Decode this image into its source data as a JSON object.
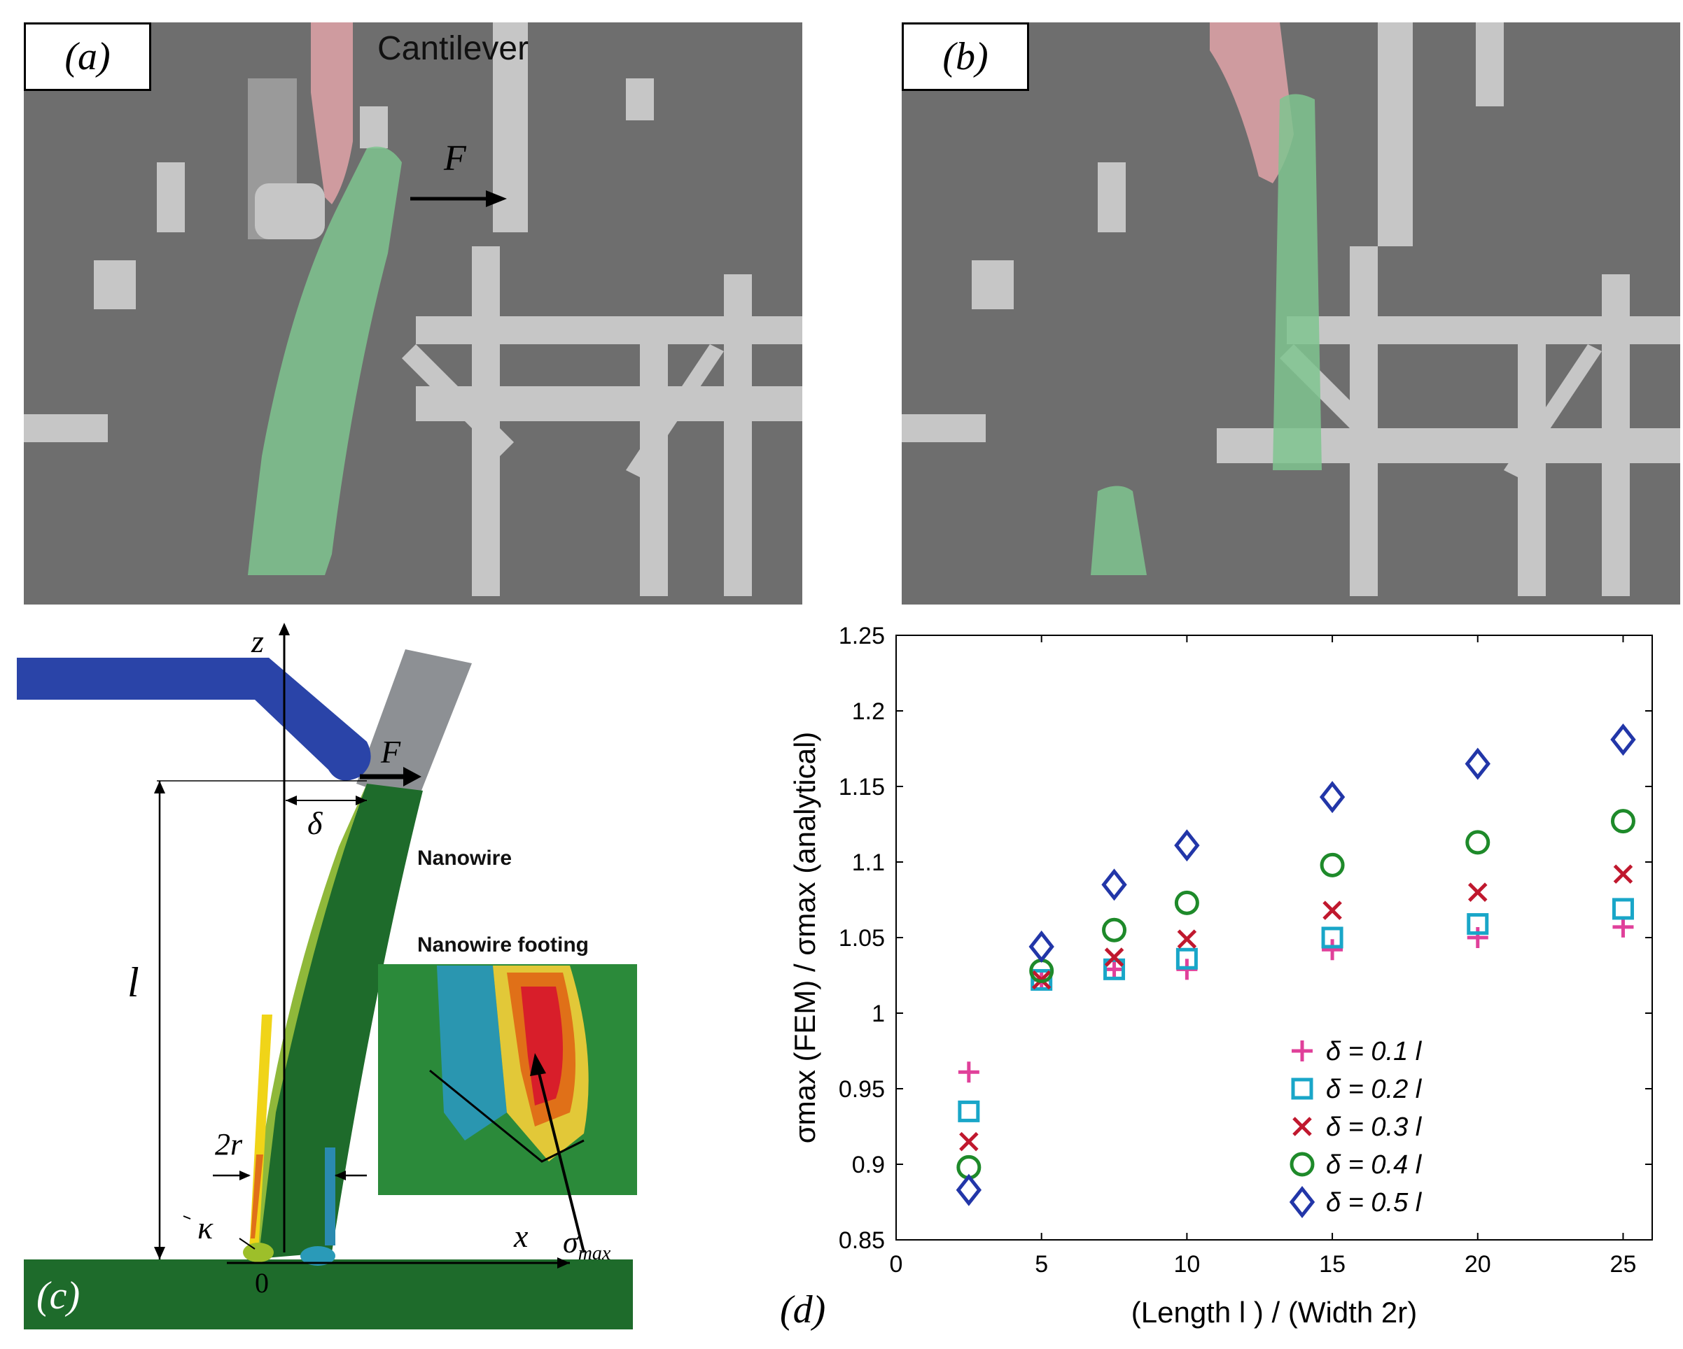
{
  "panel_a": {
    "label": "(a)",
    "cantilever_text": "Cantilever",
    "force_label": "F"
  },
  "panel_b": {
    "label": "(b)"
  },
  "panel_c": {
    "label": "(c)",
    "z_label": "z",
    "x_label": "x",
    "force_label": "F",
    "delta_label": "δ",
    "length_label": "l",
    "width_label": "2r",
    "kappa_label": "κ",
    "origin_label": "0",
    "nanowire_label": "Nanowire",
    "footing_label": "Nanowire footing",
    "sigma_label": "σ",
    "sigma_sub": "max"
  },
  "panel_d": {
    "label": "(d)"
  },
  "colors": {
    "sem_bg": "#6e6e6e",
    "green_tint": "#7fc48f",
    "pink_tint": "#d9a0a4",
    "cantilever_blue": "#2a44a8",
    "nanowire_green": "#1e6b2b",
    "probe_gray": "#8d9094",
    "s1": "#e0409a",
    "s2": "#19a6c8",
    "s3": "#c0182e",
    "s4": "#1e8a2a",
    "s5": "#2236a8"
  },
  "chart_data": {
    "type": "scatter",
    "xlabel": "(Length l ) / (Width 2r)",
    "ylabel": "σmax (FEM) / σmax (analytical)",
    "xlim": [
      0,
      26
    ],
    "ylim": [
      0.85,
      1.25
    ],
    "xticks": [
      "0",
      "5",
      "10",
      "15",
      "20",
      "25"
    ],
    "yticks": [
      "0.85",
      "0.9",
      "0.95",
      "1",
      "1.05",
      "1.1",
      "1.15",
      "1.2",
      "1.25"
    ],
    "x": [
      2.5,
      5,
      7.5,
      10,
      15,
      20,
      25
    ],
    "series": [
      {
        "name": "δ = 0.1 l",
        "marker": "plus",
        "color": "#e0409a",
        "values": [
          0.961,
          1.022,
          1.029,
          1.029,
          1.042,
          1.05,
          1.057
        ]
      },
      {
        "name": "δ = 0.2 l",
        "marker": "square",
        "color": "#19a6c8",
        "values": [
          0.935,
          1.022,
          1.029,
          1.036,
          1.05,
          1.059,
          1.069
        ]
      },
      {
        "name": "δ = 0.3 l",
        "marker": "x",
        "color": "#c0182e",
        "values": [
          0.915,
          1.022,
          1.037,
          1.049,
          1.068,
          1.08,
          1.092
        ]
      },
      {
        "name": "δ = 0.4 l",
        "marker": "circle",
        "color": "#1e8a2a",
        "values": [
          0.898,
          1.028,
          1.055,
          1.073,
          1.098,
          1.113,
          1.127
        ]
      },
      {
        "name": "δ = 0.5 l",
        "marker": "diamond",
        "color": "#2236a8",
        "values": [
          0.883,
          1.044,
          1.085,
          1.111,
          1.143,
          1.165,
          1.181
        ]
      }
    ],
    "legend_position": "bottom-right",
    "grid": false
  }
}
